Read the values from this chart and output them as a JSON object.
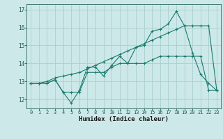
{
  "xlabel": "Humidex (Indice chaleur)",
  "background_color": "#cce8e8",
  "grid_color": "#aacece",
  "line_color": "#1a7a6e",
  "xlim": [
    -0.5,
    23.5
  ],
  "ylim": [
    11.5,
    17.3
  ],
  "yticks": [
    12,
    13,
    14,
    15,
    16,
    17
  ],
  "xticks": [
    0,
    1,
    2,
    3,
    4,
    5,
    6,
    7,
    8,
    9,
    10,
    11,
    12,
    13,
    14,
    15,
    16,
    17,
    18,
    19,
    20,
    21,
    22,
    23
  ],
  "line1_x": [
    0,
    1,
    2,
    3,
    4,
    5,
    6,
    7,
    8,
    9,
    10,
    11,
    12,
    13,
    14,
    15,
    16,
    17,
    18,
    19,
    20,
    21,
    22,
    23
  ],
  "line1_y": [
    12.9,
    12.9,
    12.9,
    13.1,
    12.4,
    11.8,
    12.5,
    13.8,
    13.8,
    13.3,
    13.9,
    14.4,
    14.0,
    14.9,
    15.0,
    15.8,
    15.9,
    16.2,
    16.9,
    16.1,
    14.6,
    13.4,
    12.9,
    12.5
  ],
  "line2_x": [
    0,
    1,
    2,
    3,
    4,
    5,
    6,
    7,
    8,
    9,
    10,
    11,
    12,
    13,
    14,
    15,
    16,
    17,
    18,
    19,
    20,
    21,
    22,
    23
  ],
  "line2_y": [
    12.9,
    12.9,
    12.9,
    13.1,
    12.4,
    12.4,
    12.4,
    13.5,
    13.5,
    13.5,
    13.8,
    14.0,
    14.0,
    14.0,
    14.0,
    14.2,
    14.4,
    14.4,
    14.4,
    14.4,
    14.4,
    14.4,
    12.5,
    12.5
  ],
  "line3_x": [
    0,
    1,
    2,
    3,
    4,
    5,
    6,
    7,
    8,
    9,
    10,
    11,
    12,
    13,
    14,
    15,
    16,
    17,
    18,
    19,
    20,
    21,
    22,
    23
  ],
  "line3_y": [
    12.9,
    12.9,
    13.0,
    13.2,
    13.3,
    13.4,
    13.5,
    13.7,
    13.9,
    14.1,
    14.3,
    14.5,
    14.7,
    14.9,
    15.1,
    15.3,
    15.5,
    15.7,
    15.9,
    16.1,
    16.1,
    16.1,
    16.1,
    12.5
  ]
}
